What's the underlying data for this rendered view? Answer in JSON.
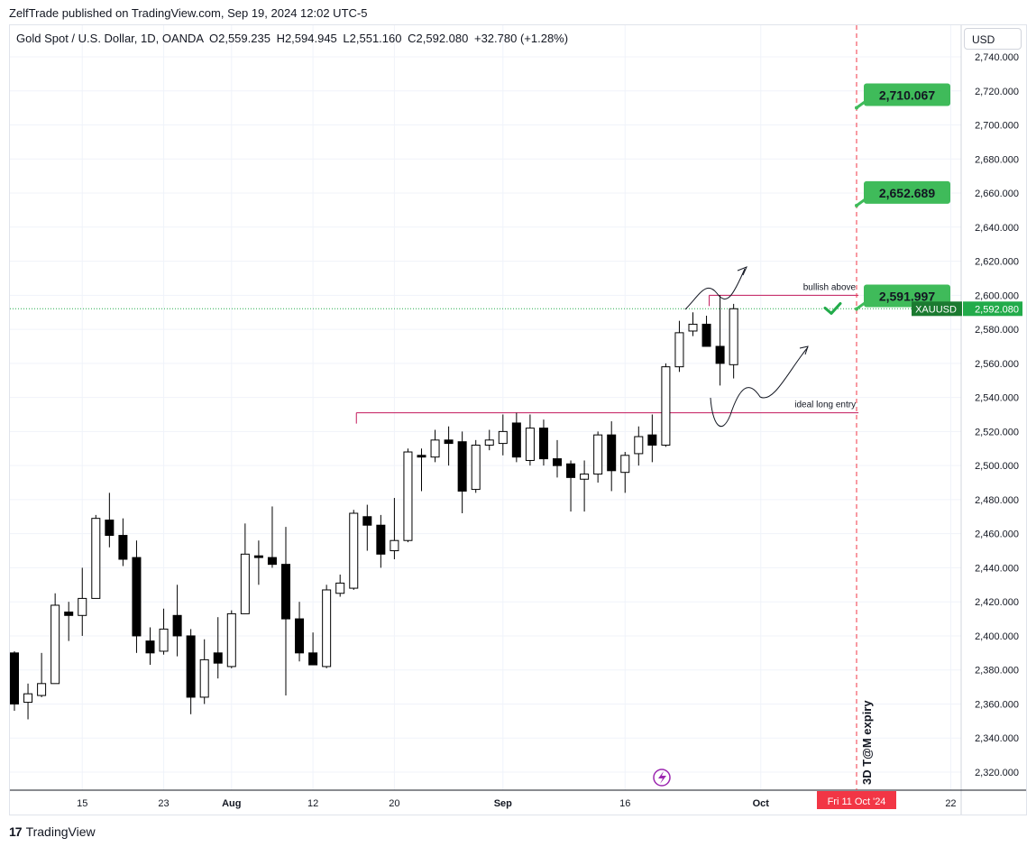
{
  "header": {
    "publisher_line": "ZelfTrade published on TradingView.com, Sep 19, 2024 12:02 UTC-5",
    "symbol_line": "Gold Spot / U.S. Dollar, 1D, OANDA",
    "ohlc": {
      "o": "O2,559.235",
      "h": "H2,594.945",
      "l": "L2,551.160",
      "c": "C2,592.080",
      "change": "+32.780 (+1.28%)"
    }
  },
  "currency_button": "USD",
  "footer": {
    "brand": "TradingView",
    "logo_glyph": "17"
  },
  "colors": {
    "grid": "#f0f3fa",
    "candle_down": "#000000",
    "candle_up": "#ffffff",
    "candle_stroke": "#000000",
    "target_green": "#3fbb5a",
    "price_line": "#22ab4a",
    "accent_red": "#f23645",
    "level_line": "#c2185b",
    "axis_text": "#131722",
    "icon_purple": "#9c27b0"
  },
  "chart_data": {
    "type": "candlestick",
    "symbol": "XAUUSD",
    "timeframe": "1D",
    "y_axis": {
      "range": [
        2310,
        2745
      ],
      "ticks": [
        "2,740.000",
        "2,720.000",
        "2,700.000",
        "2,680.000",
        "2,660.000",
        "2,640.000",
        "2,620.000",
        "2,600.000",
        "2,580.000",
        "2,560.000",
        "2,540.000",
        "2,520.000",
        "2,500.000",
        "2,480.000",
        "2,460.000",
        "2,440.000",
        "2,420.000",
        "2,400.000",
        "2,380.000",
        "2,360.000",
        "2,340.000",
        "2,320.000"
      ]
    },
    "x_axis": {
      "labels": [
        {
          "index": 5,
          "text": "15"
        },
        {
          "index": 11,
          "text": "23"
        },
        {
          "index": 16,
          "text": "Aug"
        },
        {
          "index": 22,
          "text": "12"
        },
        {
          "index": 28,
          "text": "20"
        },
        {
          "index": 36,
          "text": "Sep"
        },
        {
          "index": 45,
          "text": "16"
        },
        {
          "index": 55,
          "text": "Oct"
        },
        {
          "index": 69,
          "text": "22"
        }
      ],
      "expiry_label": {
        "index": 62,
        "text": "Fri 11 Oct '24"
      }
    },
    "candles": [
      {
        "o": 2390,
        "h": 2391,
        "l": 2356,
        "c": 2360
      },
      {
        "o": 2361,
        "h": 2372,
        "l": 2351,
        "c": 2366
      },
      {
        "o": 2365,
        "h": 2390,
        "l": 2364,
        "c": 2372
      },
      {
        "o": 2372,
        "h": 2425,
        "l": 2372,
        "c": 2418
      },
      {
        "o": 2414,
        "h": 2420,
        "l": 2397,
        "c": 2412
      },
      {
        "o": 2412,
        "h": 2440,
        "l": 2400,
        "c": 2422
      },
      {
        "o": 2422,
        "h": 2471,
        "l": 2422,
        "c": 2469
      },
      {
        "o": 2468,
        "h": 2484,
        "l": 2452,
        "c": 2459
      },
      {
        "o": 2459,
        "h": 2469,
        "l": 2441,
        "c": 2445
      },
      {
        "o": 2446,
        "h": 2456,
        "l": 2390,
        "c": 2400
      },
      {
        "o": 2397,
        "h": 2405,
        "l": 2383,
        "c": 2390
      },
      {
        "o": 2391,
        "h": 2416,
        "l": 2389,
        "c": 2404
      },
      {
        "o": 2412,
        "h": 2430,
        "l": 2388,
        "c": 2400
      },
      {
        "o": 2400,
        "h": 2404,
        "l": 2354,
        "c": 2364
      },
      {
        "o": 2364,
        "h": 2398,
        "l": 2360,
        "c": 2386
      },
      {
        "o": 2390,
        "h": 2411,
        "l": 2375,
        "c": 2384
      },
      {
        "o": 2382,
        "h": 2415,
        "l": 2381,
        "c": 2413
      },
      {
        "o": 2413,
        "h": 2466,
        "l": 2413,
        "c": 2448
      },
      {
        "o": 2447,
        "h": 2456,
        "l": 2430,
        "c": 2446
      },
      {
        "o": 2446,
        "h": 2476,
        "l": 2440,
        "c": 2442
      },
      {
        "o": 2442,
        "h": 2464,
        "l": 2365,
        "c": 2410
      },
      {
        "o": 2410,
        "h": 2420,
        "l": 2385,
        "c": 2390
      },
      {
        "o": 2390,
        "h": 2402,
        "l": 2385,
        "c": 2383
      },
      {
        "o": 2382,
        "h": 2430,
        "l": 2381,
        "c": 2427
      },
      {
        "o": 2425,
        "h": 2436,
        "l": 2423,
        "c": 2431
      },
      {
        "o": 2428,
        "h": 2474,
        "l": 2427,
        "c": 2472
      },
      {
        "o": 2470,
        "h": 2477,
        "l": 2450,
        "c": 2465
      },
      {
        "o": 2465,
        "h": 2471,
        "l": 2440,
        "c": 2448
      },
      {
        "o": 2450,
        "h": 2481,
        "l": 2445,
        "c": 2456
      },
      {
        "o": 2456,
        "h": 2510,
        "l": 2455,
        "c": 2508
      },
      {
        "o": 2506,
        "h": 2510,
        "l": 2485,
        "c": 2505
      },
      {
        "o": 2505,
        "h": 2521,
        "l": 2502,
        "c": 2515
      },
      {
        "o": 2515,
        "h": 2523,
        "l": 2500,
        "c": 2513
      },
      {
        "o": 2514,
        "h": 2520,
        "l": 2472,
        "c": 2485
      },
      {
        "o": 2486,
        "h": 2515,
        "l": 2484,
        "c": 2512
      },
      {
        "o": 2512,
        "h": 2521,
        "l": 2509,
        "c": 2515
      },
      {
        "o": 2513,
        "h": 2530,
        "l": 2506,
        "c": 2520
      },
      {
        "o": 2525,
        "h": 2531,
        "l": 2502,
        "c": 2505
      },
      {
        "o": 2503,
        "h": 2530,
        "l": 2500,
        "c": 2522
      },
      {
        "o": 2522,
        "h": 2527,
        "l": 2500,
        "c": 2504
      },
      {
        "o": 2504,
        "h": 2515,
        "l": 2493,
        "c": 2500
      },
      {
        "o": 2501,
        "h": 2503,
        "l": 2473,
        "c": 2493
      },
      {
        "o": 2492,
        "h": 2503,
        "l": 2473,
        "c": 2495
      },
      {
        "o": 2495,
        "h": 2520,
        "l": 2490,
        "c": 2518
      },
      {
        "o": 2518,
        "h": 2526,
        "l": 2485,
        "c": 2497
      },
      {
        "o": 2496,
        "h": 2508,
        "l": 2484,
        "c": 2506
      },
      {
        "o": 2507,
        "h": 2523,
        "l": 2500,
        "c": 2517
      },
      {
        "o": 2518,
        "h": 2530,
        "l": 2502,
        "c": 2512
      },
      {
        "o": 2512,
        "h": 2560,
        "l": 2511,
        "c": 2558
      },
      {
        "o": 2558,
        "h": 2585,
        "l": 2555,
        "c": 2578
      },
      {
        "o": 2579,
        "h": 2590,
        "l": 2576,
        "c": 2583
      },
      {
        "o": 2583,
        "h": 2588,
        "l": 2570,
        "c": 2570
      },
      {
        "o": 2570,
        "h": 2600,
        "l": 2547,
        "c": 2560
      },
      {
        "o": 2559.235,
        "h": 2594.945,
        "l": 2551.16,
        "c": 2592.08
      }
    ],
    "current_price": {
      "value": 2592.08,
      "label": "XAUUSD",
      "price_text": "2,592.080"
    },
    "levels": [
      {
        "name": "bullish above",
        "value": 2600,
        "from_index": 51,
        "to_index": 62
      },
      {
        "name": "ideal long entry",
        "value": 2531,
        "from_index": 25,
        "to_index": 62
      }
    ],
    "targets": [
      {
        "value": 2710.067,
        "label": "2,710.067"
      },
      {
        "value": 2652.689,
        "label": "2,652.689"
      },
      {
        "value": 2591.997,
        "label": "2,591.997"
      }
    ],
    "expiry_annotation": "3D T@M expiry",
    "checkmark_value": 2592
  }
}
